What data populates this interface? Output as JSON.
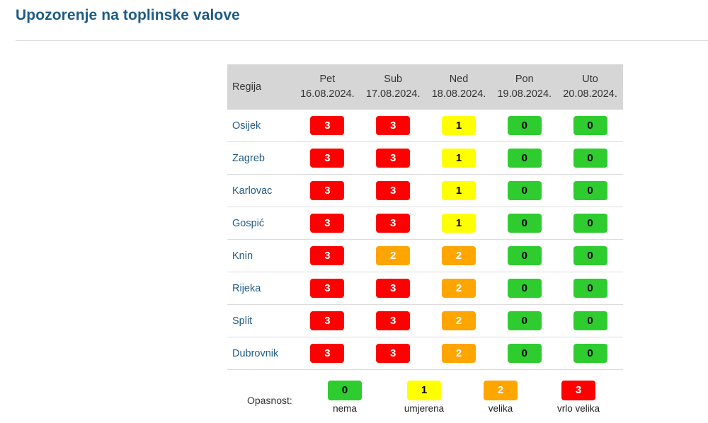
{
  "page": {
    "title": "Upozorenje na toplinske valove"
  },
  "table": {
    "region_header": "Regija",
    "days": [
      {
        "name": "Pet",
        "date": "16.08.2024."
      },
      {
        "name": "Sub",
        "date": "17.08.2024."
      },
      {
        "name": "Ned",
        "date": "18.08.2024."
      },
      {
        "name": "Pon",
        "date": "19.08.2024."
      },
      {
        "name": "Uto",
        "date": "20.08.2024."
      }
    ],
    "rows": [
      {
        "region": "Osijek",
        "levels": [
          "3",
          "3",
          "1",
          "0",
          "0"
        ]
      },
      {
        "region": "Zagreb",
        "levels": [
          "3",
          "3",
          "1",
          "0",
          "0"
        ]
      },
      {
        "region": "Karlovac",
        "levels": [
          "3",
          "3",
          "1",
          "0",
          "0"
        ]
      },
      {
        "region": "Gospić",
        "levels": [
          "3",
          "3",
          "1",
          "0",
          "0"
        ]
      },
      {
        "region": "Knin",
        "levels": [
          "3",
          "2",
          "2",
          "0",
          "0"
        ]
      },
      {
        "region": "Rijeka",
        "levels": [
          "3",
          "3",
          "2",
          "0",
          "0"
        ]
      },
      {
        "region": "Split",
        "levels": [
          "3",
          "3",
          "2",
          "0",
          "0"
        ]
      },
      {
        "region": "Dubrovnik",
        "levels": [
          "3",
          "3",
          "2",
          "0",
          "0"
        ]
      }
    ]
  },
  "legend": {
    "label": "Opasnost:",
    "items": [
      {
        "level": "0",
        "text": "nema"
      },
      {
        "level": "1",
        "text": "umjerena"
      },
      {
        "level": "2",
        "text": "velika"
      },
      {
        "level": "3",
        "text": "vrlo velika"
      }
    ]
  },
  "colors": {
    "level_0": "#2ecc2e",
    "level_1": "#ffff00",
    "level_2": "#ffa500",
    "level_3": "#ff0000",
    "title": "#1f5b85",
    "header_bg": "#d6d6d6"
  }
}
